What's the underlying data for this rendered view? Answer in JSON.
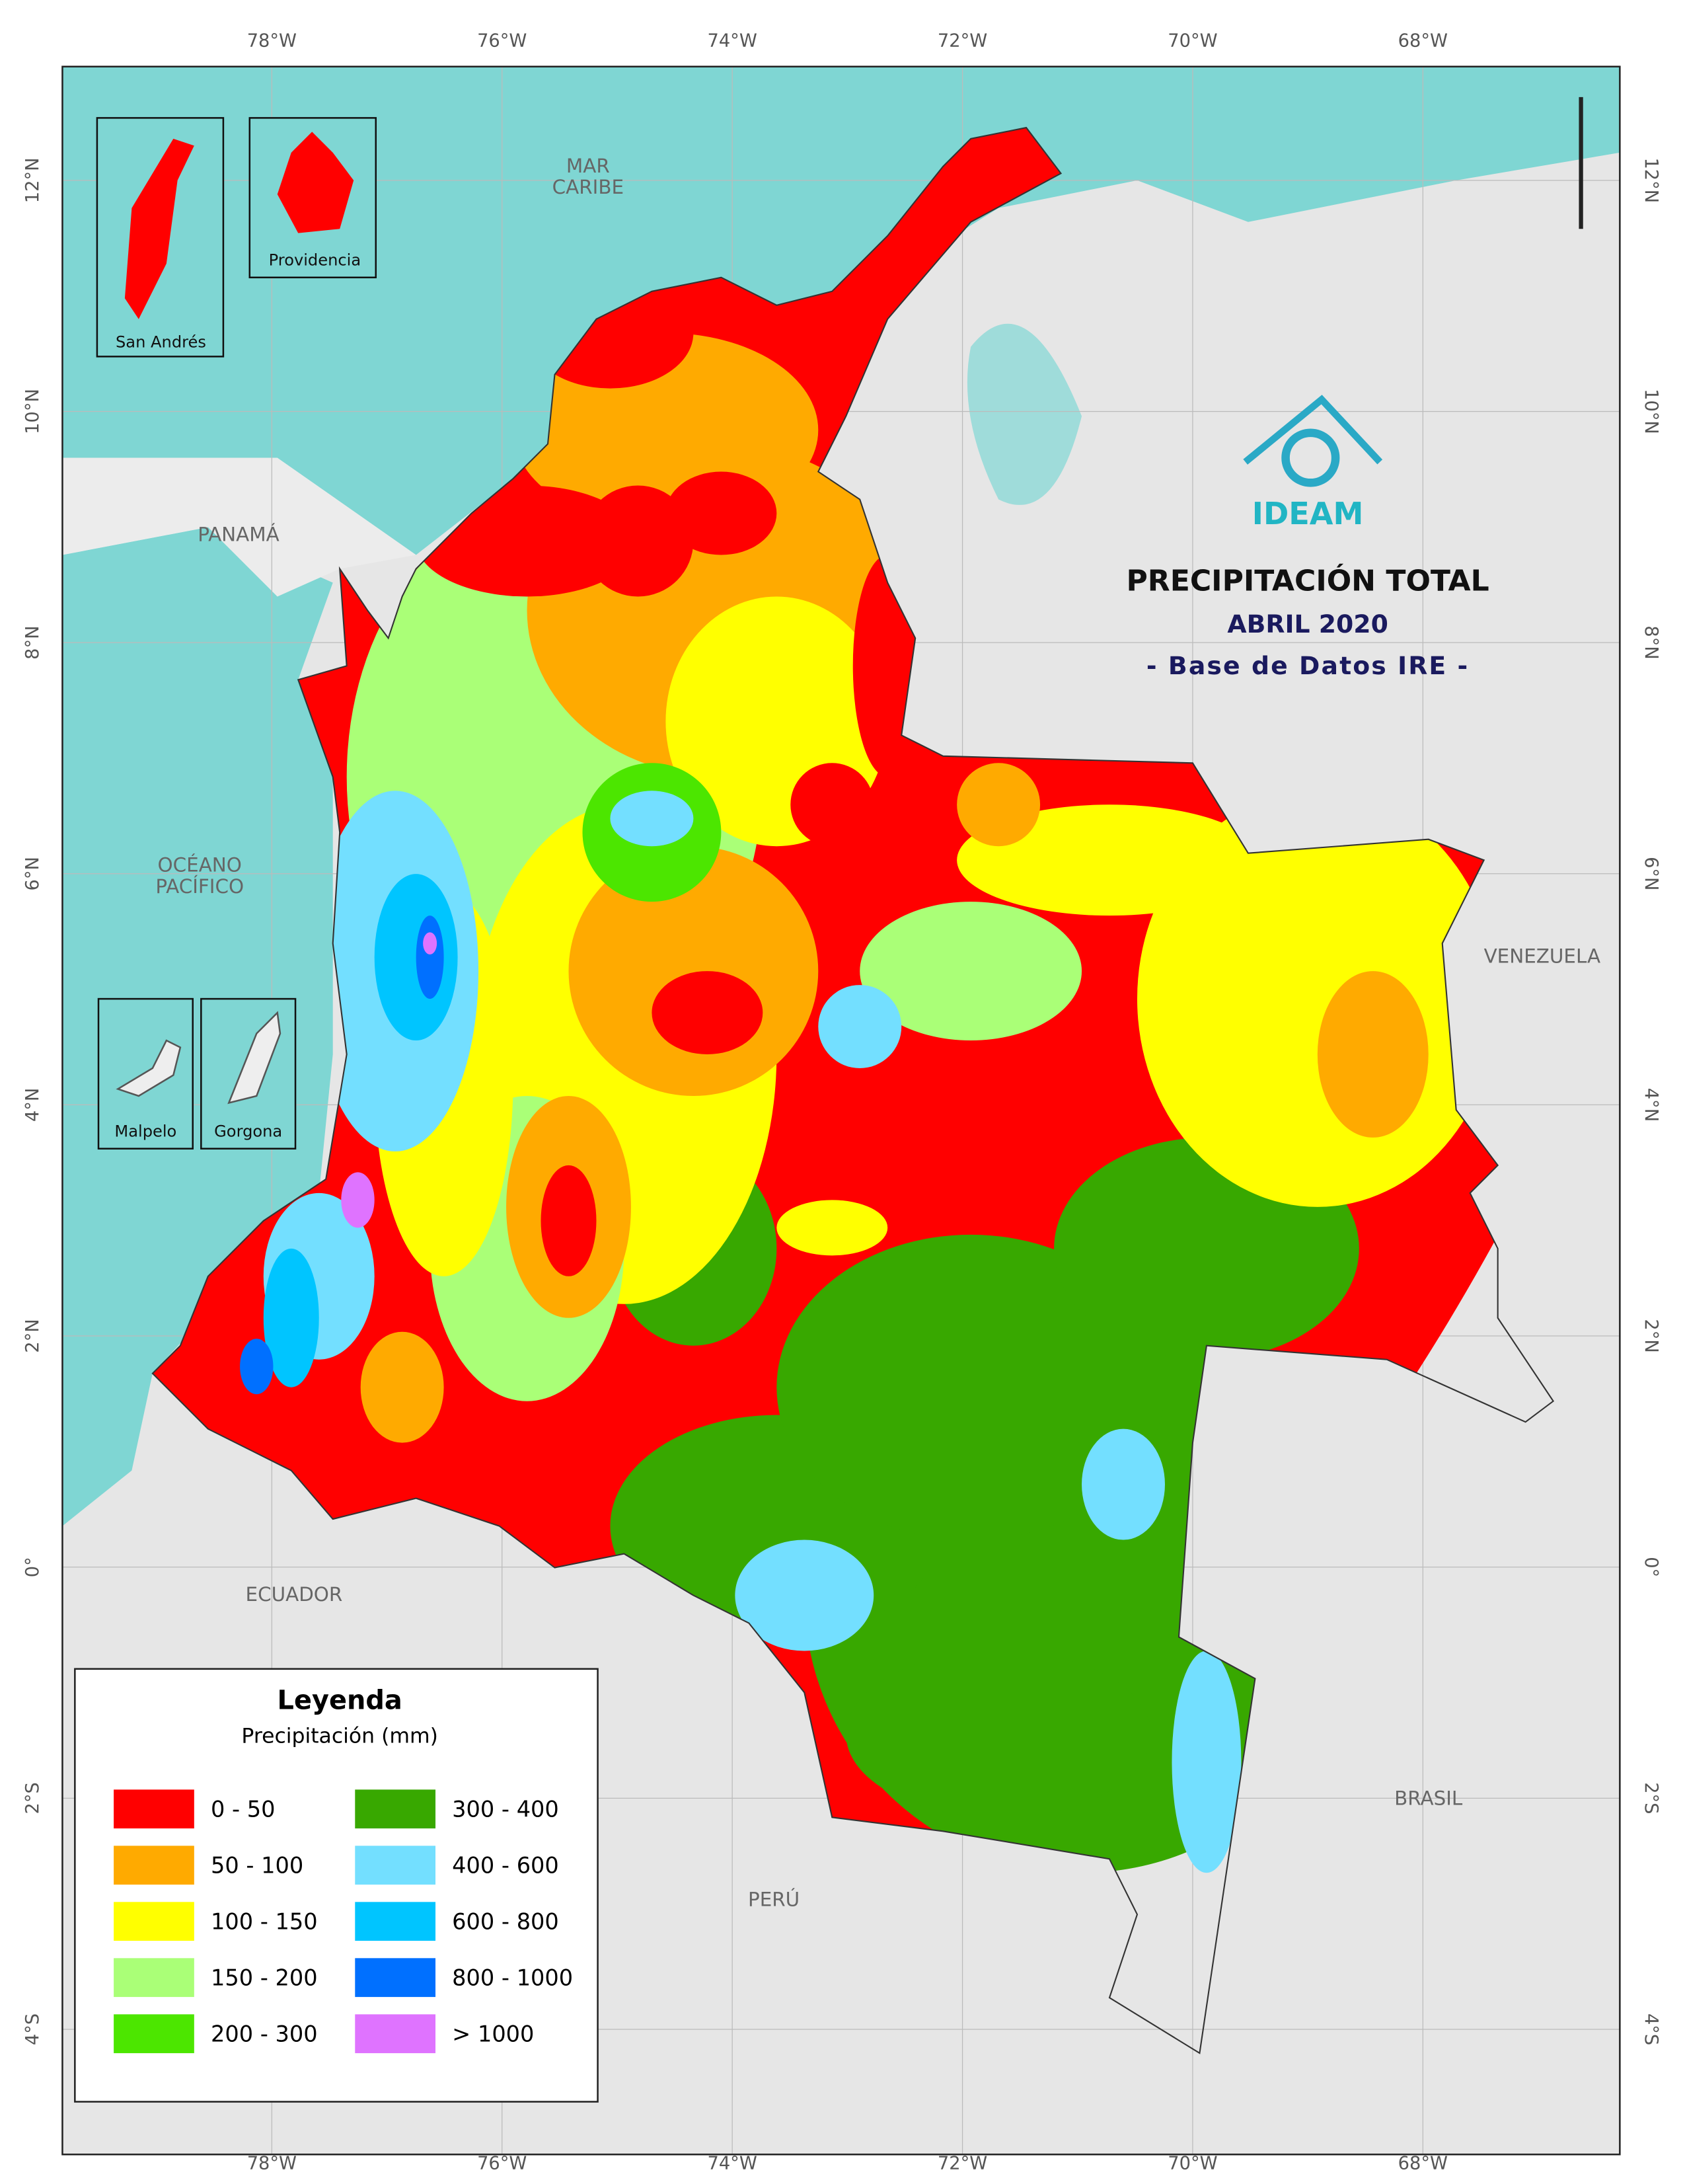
{
  "map": {
    "title": "PRECIPITACIÓN TOTAL",
    "subtitle": "ABRIL 2020",
    "source": "- Base de Datos IRE -",
    "logo": "IDEAM",
    "lon_ticks": [
      "78°W",
      "76°W",
      "74°W",
      "72°W",
      "70°W",
      "68°W"
    ],
    "lat_ticks": [
      "12°N",
      "10°N",
      "8°N",
      "6°N",
      "4°N",
      "2°N",
      "0°",
      "2°S",
      "4°S"
    ],
    "places": [
      "MAR\nCARIBE",
      "PANAMÁ",
      "OCÉANO\nPACÍFICO",
      "VENEZUELA",
      "ECUADOR",
      "PERÚ",
      "BRASIL"
    ],
    "insets": [
      "San Andrés",
      "Providencia",
      "Malpelo",
      "Gorgona"
    ],
    "legend": {
      "title": "Leyenda",
      "subtitle": "Precipitación (mm)",
      "items": [
        {
          "label": "0 - 50",
          "color": "#ff0000"
        },
        {
          "label": "50 - 100",
          "color": "#ffaa00"
        },
        {
          "label": "100 - 150",
          "color": "#ffff00"
        },
        {
          "label": "150 - 200",
          "color": "#aaff77"
        },
        {
          "label": "200 - 300",
          "color": "#4ce600"
        },
        {
          "label": "300 - 400",
          "color": "#38a800"
        },
        {
          "label": "400 - 600",
          "color": "#73dfff"
        },
        {
          "label": "600 - 800",
          "color": "#00c5ff"
        },
        {
          "label": "800 - 1000",
          "color": "#0070ff"
        },
        {
          "label": "> 1000",
          "color": "#df73ff"
        }
      ]
    }
  }
}
